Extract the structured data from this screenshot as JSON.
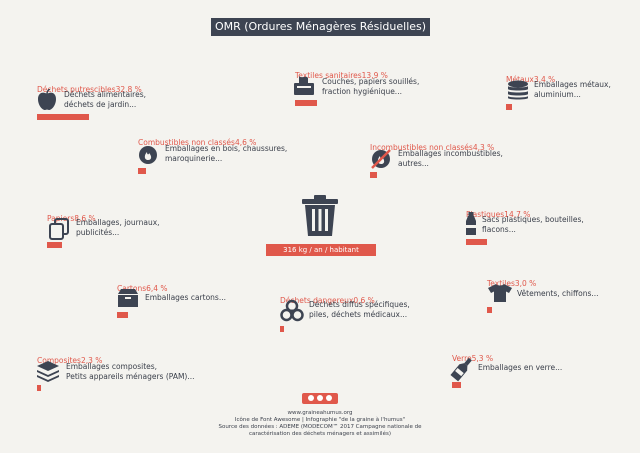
{
  "title": "OMR (Ordures Ménagères Résiduelles)",
  "center": {
    "label": "316 kg / an / habitant",
    "icon": "trash-icon"
  },
  "categories": [
    {
      "key": "putrescibles",
      "name": "Déchets putrescibles",
      "pct": "32.8 %",
      "value": 32.8,
      "desc1": "Déchets alimentaires,",
      "desc2": "déchets de jardin...",
      "icon": "apple-icon"
    },
    {
      "key": "textiles-sanitaires",
      "name": "Textiles sanitaires",
      "pct": "13,9 %",
      "value": 13.9,
      "desc1": "Couches, papiers souillés,",
      "desc2": "fraction hygiénique...",
      "icon": "tissue-box-icon"
    },
    {
      "key": "metaux",
      "name": "Métaux",
      "pct": "3,4 %",
      "value": 3.4,
      "desc1": "Emballages métaux,",
      "desc2": "aluminium...",
      "icon": "coins-stack-icon"
    },
    {
      "key": "combustibles",
      "name": "Combustibles non classés",
      "pct": "4,6 %",
      "value": 4.6,
      "desc1": "Emballages en bois, chaussures,",
      "desc2": "maroquinerie...",
      "icon": "fire-icon"
    },
    {
      "key": "incombustibles",
      "name": "Incombustibles non classés",
      "pct": "4,3 %",
      "value": 4.3,
      "desc1": "Emballages incombustibles,",
      "desc2": "autres...",
      "icon": "no-fire-icon"
    },
    {
      "key": "papiers",
      "name": "Papiers",
      "pct": "8,6 %",
      "value": 8.6,
      "desc1": "Emballages, journaux,",
      "desc2": "publicités...",
      "icon": "copy-icon"
    },
    {
      "key": "plastiques",
      "name": "Plastiques",
      "pct": "14,7 %",
      "value": 14.7,
      "desc1": "Sacs plastiques, bouteilles,",
      "desc2": "flacons...",
      "icon": "bottle-icon"
    },
    {
      "key": "cartons",
      "name": "Cartons",
      "pct": "6,4 %",
      "value": 6.4,
      "desc1": "Emballages cartons...",
      "desc2": "",
      "icon": "box-icon"
    },
    {
      "key": "dangereux",
      "name": "Déchets dangereux",
      "pct": "0,6 %",
      "value": 0.6,
      "desc1": "Déchets diffus spécifiques,",
      "desc2": "piles, déchets médicaux...",
      "icon": "biohazard-icon"
    },
    {
      "key": "textiles",
      "name": "Textiles",
      "pct": "3,0 %",
      "value": 3.0,
      "desc1": "Vêtements, chiffons...",
      "desc2": "",
      "icon": "tshirt-icon"
    },
    {
      "key": "composites",
      "name": "Composites",
      "pct": "2,3 %",
      "value": 2.3,
      "desc1": "Emballages composites,",
      "desc2": "Petits appareils ménagers (PAM)...",
      "icon": "layers-icon"
    },
    {
      "key": "verre",
      "name": "Verre",
      "pct": "5,3 %",
      "value": 5.3,
      "desc1": "Emballages en verre...",
      "desc2": "",
      "icon": "wine-bottle-icon"
    }
  ],
  "footer": {
    "line1": "www.graineahumus.org",
    "line2": "Icône de Font Awesome | Infographie \"de la graine à l'humus\"",
    "line3": "Source des données : ADEME (MODECOM™ 2017 Campagne nationale de",
    "line4": "caractérisation des déchets ménagers et assimilés)"
  },
  "colors": {
    "accent": "#e0584b",
    "dark": "#3d4452",
    "background": "#f4f3ef"
  }
}
